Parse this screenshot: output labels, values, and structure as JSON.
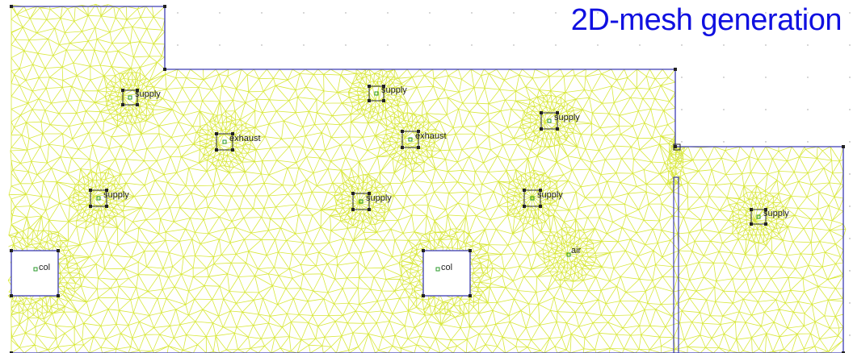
{
  "title": "2D-mesh generation",
  "colors": {
    "mesh": "#d8e83a",
    "boundary": "#3c3cb4",
    "marker_green": "#2a9a2a",
    "title": "#1010e0"
  },
  "labels": {
    "supply": "supply",
    "exhaust": "exhaust",
    "col": "col",
    "air": "air"
  },
  "items": [
    {
      "kind": "supply",
      "label": "supply"
    },
    {
      "kind": "supply",
      "label": "supply"
    },
    {
      "kind": "supply",
      "label": "supply"
    },
    {
      "kind": "supply",
      "label": "supply"
    },
    {
      "kind": "supply",
      "label": "supply"
    },
    {
      "kind": "supply",
      "label": "supply"
    },
    {
      "kind": "supply",
      "label": "supply"
    },
    {
      "kind": "exhaust",
      "label": "exhaust"
    },
    {
      "kind": "exhaust",
      "label": "exhaust"
    },
    {
      "kind": "column",
      "label": "col"
    },
    {
      "kind": "column",
      "label": "col"
    },
    {
      "kind": "region",
      "label": "air"
    }
  ]
}
